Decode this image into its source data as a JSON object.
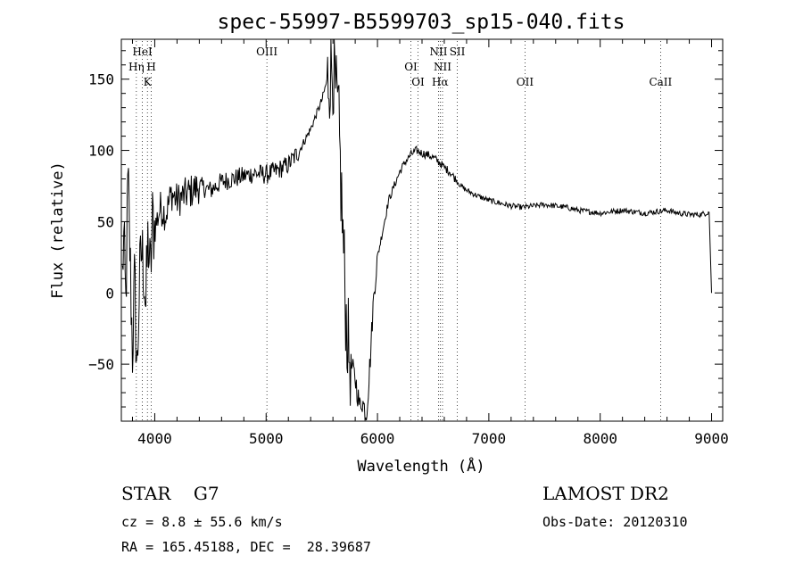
{
  "chart_data": {
    "type": "line",
    "title": "spec-55997-B5599703_sp15-040.fits",
    "xlabel": "Wavelength (Å)",
    "ylabel": "Flux (relative)",
    "xlim": [
      3700,
      9100
    ],
    "ylim": [
      -90,
      178
    ],
    "xticks": [
      4000,
      5000,
      6000,
      7000,
      8000,
      9000
    ],
    "yticks": [
      -50,
      0,
      50,
      100,
      150
    ],
    "grid": false,
    "legend": "none",
    "series": [
      {
        "x": [
          3700,
          3720,
          3740,
          3760,
          3780,
          3800,
          3820,
          3840,
          3860,
          3880,
          3900,
          3920,
          3940,
          3960,
          3980,
          4000,
          4050,
          4100,
          4150,
          4200,
          4300,
          4400,
          4500,
          4600,
          4700,
          4800,
          4900,
          5000,
          5100,
          5200,
          5300,
          5400,
          5450,
          5500,
          5550,
          5600,
          5620,
          5650,
          5680,
          5700,
          5720,
          5740,
          5760,
          5780,
          5800,
          5820,
          5840,
          5860,
          5880,
          5900,
          5920,
          5940,
          5960,
          5980,
          6000,
          6050,
          6100,
          6150,
          6200,
          6250,
          6300,
          6350,
          6400,
          6450,
          6500,
          6550,
          6600,
          6650,
          6700,
          6750,
          6800,
          6900,
          7000,
          7100,
          7200,
          7300,
          7400,
          7500,
          7600,
          7700,
          7800,
          7900,
          8000,
          8100,
          8200,
          8300,
          8400,
          8500,
          8600,
          8700,
          8800,
          8900,
          8950,
          8980,
          9000
        ],
        "values": [
          -20,
          40,
          -10,
          80,
          20,
          -40,
          10,
          -60,
          0,
          30,
          20,
          -10,
          40,
          10,
          50,
          45,
          60,
          55,
          70,
          65,
          70,
          75,
          72,
          78,
          80,
          82,
          84,
          83,
          86,
          90,
          100,
          115,
          125,
          135,
          150,
          160,
          140,
          120,
          60,
          20,
          -20,
          -40,
          -50,
          -55,
          -60,
          -70,
          -80,
          -75,
          -80,
          -85,
          -65,
          -40,
          -10,
          10,
          25,
          45,
          65,
          75,
          85,
          92,
          97,
          100,
          98,
          97,
          95,
          92,
          88,
          85,
          80,
          75,
          72,
          68,
          65,
          63,
          61,
          60,
          61,
          62,
          61,
          60,
          58,
          57,
          56,
          57,
          58,
          57,
          56,
          57,
          58,
          56,
          55,
          55,
          56,
          57,
          0
        ]
      }
    ],
    "line_labels": [
      {
        "x": 3889,
        "label": "HeI"
      },
      {
        "x": 3835,
        "label": "Hη"
      },
      {
        "x": 3934,
        "label": "K"
      },
      {
        "x": 3969,
        "label": "H"
      },
      {
        "x": 5007,
        "label": "OIII"
      },
      {
        "x": 6300,
        "label": "OI"
      },
      {
        "x": 6364,
        "label": "OI"
      },
      {
        "x": 6548,
        "label": "NII"
      },
      {
        "x": 6563,
        "label": "Hα"
      },
      {
        "x": 6584,
        "label": "NII"
      },
      {
        "x": 6717,
        "label": "SII"
      },
      {
        "x": 7325,
        "label": "OII"
      },
      {
        "x": 8542,
        "label": "CaII"
      }
    ]
  },
  "info": {
    "object_type": "STAR",
    "subclass": "G7",
    "survey": "LAMOST DR2",
    "cz": "cz = 8.8 ± 55.6 km/s",
    "obs_date": "Obs-Date: 20120310",
    "coords": "RA = 165.45188, DEC =  28.39687"
  }
}
